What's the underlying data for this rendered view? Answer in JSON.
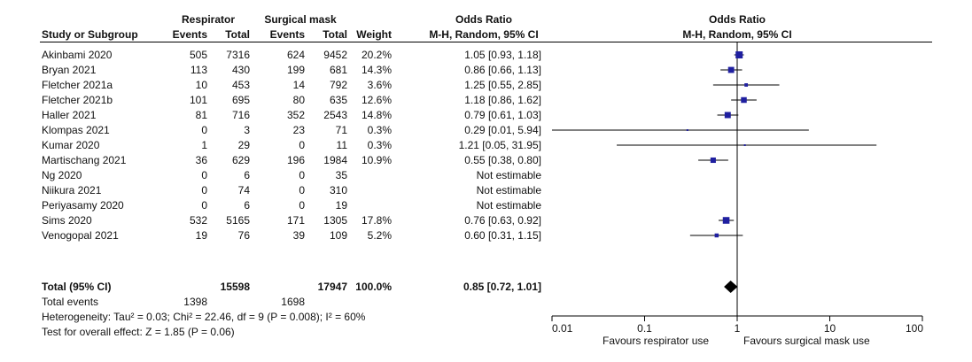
{
  "headers": {
    "group1": "Respirator",
    "group2": "Surgical mask",
    "or_title": "Odds Ratio",
    "or_method": "M-H, Random, 95% CI",
    "plot_title": "Odds Ratio",
    "plot_method": "M-H, Random, 95% CI",
    "study": "Study or Subgroup",
    "events1": "Events",
    "total1": "Total",
    "events2": "Events",
    "total2": "Total",
    "weight": "Weight"
  },
  "rows": [
    {
      "study": "Akinbami 2020",
      "e1": "505",
      "t1": "7316",
      "e2": "624",
      "t2": "9452",
      "weight": "20.2%",
      "ci": "1.05 [0.93, 1.18]"
    },
    {
      "study": "Bryan 2021",
      "e1": "113",
      "t1": "430",
      "e2": "199",
      "t2": "681",
      "weight": "14.3%",
      "ci": "0.86 [0.66, 1.13]"
    },
    {
      "study": "Fletcher 2021a",
      "e1": "10",
      "t1": "453",
      "e2": "14",
      "t2": "792",
      "weight": "3.6%",
      "ci": "1.25 [0.55, 2.85]"
    },
    {
      "study": "Fletcher 2021b",
      "e1": "101",
      "t1": "695",
      "e2": "80",
      "t2": "635",
      "weight": "12.6%",
      "ci": "1.18 [0.86, 1.62]"
    },
    {
      "study": "Haller 2021",
      "e1": "81",
      "t1": "716",
      "e2": "352",
      "t2": "2543",
      "weight": "14.8%",
      "ci": "0.79 [0.61, 1.03]"
    },
    {
      "study": "Klompas 2021",
      "e1": "0",
      "t1": "3",
      "e2": "23",
      "t2": "71",
      "weight": "0.3%",
      "ci": "0.29 [0.01, 5.94]"
    },
    {
      "study": "Kumar 2020",
      "e1": "1",
      "t1": "29",
      "e2": "0",
      "t2": "11",
      "weight": "0.3%",
      "ci": "1.21 [0.05, 31.95]"
    },
    {
      "study": "Martischang 2021",
      "e1": "36",
      "t1": "629",
      "e2": "196",
      "t2": "1984",
      "weight": "10.9%",
      "ci": "0.55 [0.38, 0.80]"
    },
    {
      "study": "Ng 2020",
      "e1": "0",
      "t1": "6",
      "e2": "0",
      "t2": "35",
      "weight": "",
      "ci": "Not estimable"
    },
    {
      "study": "Niikura 2021",
      "e1": "0",
      "t1": "74",
      "e2": "0",
      "t2": "310",
      "weight": "",
      "ci": "Not estimable"
    },
    {
      "study": "Periyasamy 2020",
      "e1": "0",
      "t1": "6",
      "e2": "0",
      "t2": "19",
      "weight": "",
      "ci": "Not estimable"
    },
    {
      "study": "Sims 2020",
      "e1": "532",
      "t1": "5165",
      "e2": "171",
      "t2": "1305",
      "weight": "17.8%",
      "ci": "0.76 [0.63, 0.92]"
    },
    {
      "study": "Venogopal 2021",
      "e1": "19",
      "t1": "76",
      "e2": "39",
      "t2": "109",
      "weight": "5.2%",
      "ci": "0.60 [0.31, 1.15]"
    }
  ],
  "total": {
    "label": "Total (95% CI)",
    "t1": "15598",
    "t2": "17947",
    "weight": "100.0%",
    "ci": "0.85 [0.72, 1.01]"
  },
  "events": {
    "label": "Total events",
    "e1": "1398",
    "e2": "1698"
  },
  "heterogeneity": "Heterogeneity: Tau² = 0.03; Chi² = 22.46, df = 9 (P = 0.008); I² = 60%",
  "overall_test": "Test for overall effect: Z = 1.85 (P = 0.06)",
  "axis": {
    "ticks": [
      "0.01",
      "0.1",
      "1",
      "10",
      "100"
    ],
    "favours_left": "Favours respirator use",
    "favours_right": "Favours surgical mask use"
  },
  "chart_data": {
    "type": "forest",
    "scale": "log",
    "xlim": [
      0.01,
      100
    ],
    "null_line": 1,
    "studies": [
      {
        "name": "Akinbami 2020",
        "or": 1.05,
        "lo": 0.93,
        "hi": 1.18,
        "weight": 20.2
      },
      {
        "name": "Bryan 2021",
        "or": 0.86,
        "lo": 0.66,
        "hi": 1.13,
        "weight": 14.3
      },
      {
        "name": "Fletcher 2021a",
        "or": 1.25,
        "lo": 0.55,
        "hi": 2.85,
        "weight": 3.6
      },
      {
        "name": "Fletcher 2021b",
        "or": 1.18,
        "lo": 0.86,
        "hi": 1.62,
        "weight": 12.6
      },
      {
        "name": "Haller 2021",
        "or": 0.79,
        "lo": 0.61,
        "hi": 1.03,
        "weight": 14.8
      },
      {
        "name": "Klompas 2021",
        "or": 0.29,
        "lo": 0.01,
        "hi": 5.94,
        "weight": 0.3
      },
      {
        "name": "Kumar 2020",
        "or": 1.21,
        "lo": 0.05,
        "hi": 31.95,
        "weight": 0.3
      },
      {
        "name": "Martischang 2021",
        "or": 0.55,
        "lo": 0.38,
        "hi": 0.8,
        "weight": 10.9
      },
      {
        "name": "Ng 2020",
        "or": null,
        "lo": null,
        "hi": null,
        "weight": null
      },
      {
        "name": "Niikura 2021",
        "or": null,
        "lo": null,
        "hi": null,
        "weight": null
      },
      {
        "name": "Periyasamy 2020",
        "or": null,
        "lo": null,
        "hi": null,
        "weight": null
      },
      {
        "name": "Sims 2020",
        "or": 0.76,
        "lo": 0.63,
        "hi": 0.92,
        "weight": 17.8
      },
      {
        "name": "Venogopal 2021",
        "or": 0.6,
        "lo": 0.31,
        "hi": 1.15,
        "weight": 5.2
      }
    ],
    "pooled": {
      "or": 0.85,
      "lo": 0.72,
      "hi": 1.01
    },
    "marker_color": "#1f1fa0",
    "line_color": "#000000"
  }
}
